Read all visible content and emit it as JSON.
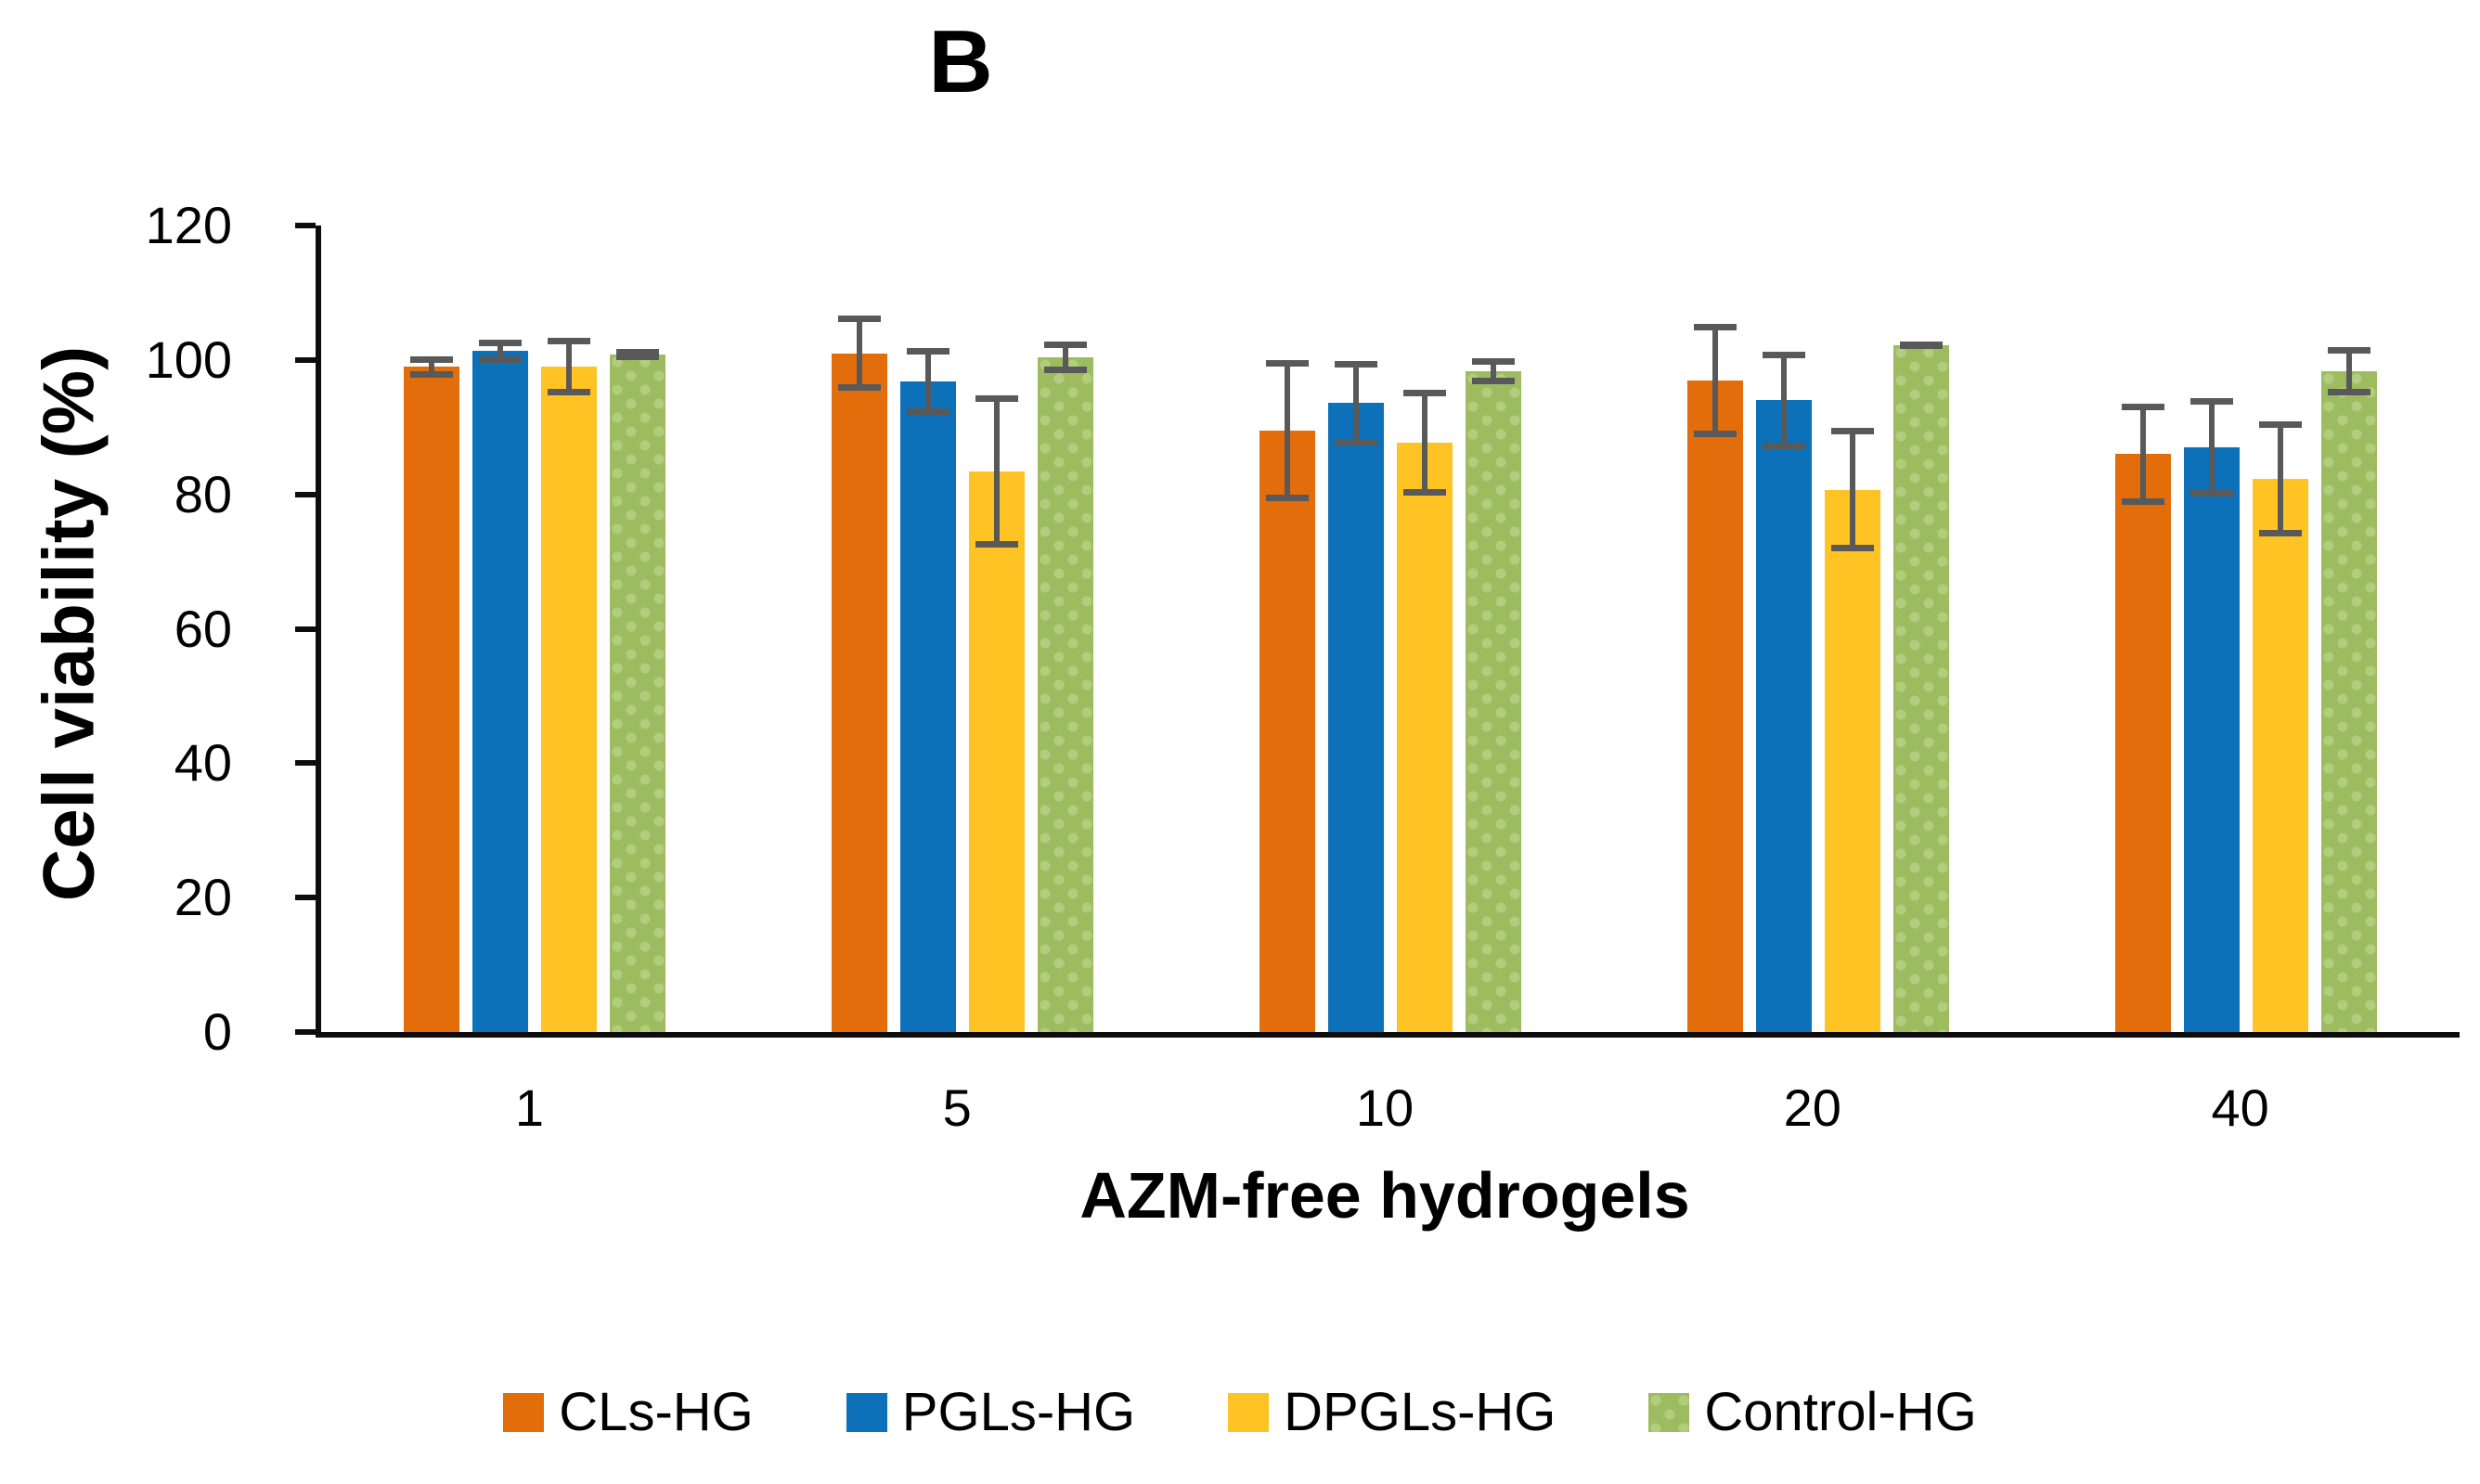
{
  "chart_data": {
    "type": "bar",
    "title": "B",
    "xlabel": "AZM-free hydrogels",
    "ylabel": "Cell viability (%)",
    "categories": [
      "1",
      "5",
      "10",
      "20",
      "40"
    ],
    "ylim": [
      0,
      120
    ],
    "yticks": [
      0,
      20,
      40,
      60,
      80,
      100,
      120
    ],
    "grid": false,
    "legend_position": "bottom",
    "axis_color": "#0D0D0D",
    "error_bar_color": "#595959",
    "series": [
      {
        "name": "CLs-HG",
        "color": "#E36C0B",
        "values": [
          99.0,
          101.0,
          89.5,
          97.0,
          86.0
        ],
        "errors": [
          1.6,
          5.6,
          10.5,
          8.4,
          7.5
        ]
      },
      {
        "name": "PGLs-HG",
        "color": "#0C71B8",
        "values": [
          101.3,
          96.8,
          93.6,
          94.0,
          87.0
        ],
        "errors": [
          1.7,
          5.0,
          6.3,
          7.2,
          7.3
        ]
      },
      {
        "name": "DPGLs-HG",
        "color": "#FFC323",
        "values": [
          99.0,
          83.4,
          87.7,
          80.7,
          82.3
        ],
        "errors": [
          4.3,
          11.3,
          7.9,
          9.2,
          8.5
        ]
      },
      {
        "name": "Control-HG",
        "color": "#9DBC5F",
        "pattern": "dots",
        "pattern_dot_color": "#B2CD7E",
        "values": [
          100.8,
          100.4,
          98.3,
          102.2,
          98.3
        ],
        "errors": [
          0.8,
          2.3,
          1.9,
          0.6,
          3.6
        ]
      }
    ]
  }
}
